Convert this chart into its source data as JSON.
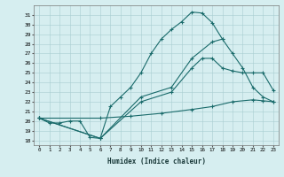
{
  "xlabel": "Humidex (Indice chaleur)",
  "bg_color": "#d6eef0",
  "grid_color": "#a8cdd0",
  "line_color": "#1a6b6b",
  "xlim": [
    -0.5,
    23.5
  ],
  "ylim": [
    17.5,
    32.0
  ],
  "xticks": [
    0,
    1,
    2,
    3,
    4,
    5,
    6,
    7,
    8,
    9,
    10,
    11,
    12,
    13,
    14,
    15,
    16,
    17,
    18,
    19,
    20,
    21,
    22,
    23
  ],
  "yticks": [
    18,
    19,
    20,
    21,
    22,
    23,
    24,
    25,
    26,
    27,
    28,
    29,
    30,
    31
  ],
  "curve1_x": [
    0,
    1,
    2,
    3,
    4,
    5,
    6,
    7,
    8,
    9,
    10,
    11,
    12,
    13,
    14,
    15,
    16,
    17,
    18
  ],
  "curve1_y": [
    20.3,
    19.8,
    19.8,
    20.0,
    20.0,
    18.3,
    18.2,
    21.5,
    22.5,
    23.5,
    25.0,
    27.0,
    28.5,
    29.5,
    30.3,
    31.3,
    31.2,
    30.2,
    28.5
  ],
  "curve2_x": [
    0,
    6,
    10,
    13,
    15,
    17,
    18,
    19,
    20,
    21,
    22,
    23
  ],
  "curve2_y": [
    20.3,
    18.2,
    22.5,
    23.5,
    26.5,
    28.2,
    28.5,
    27.0,
    25.5,
    23.5,
    22.5,
    22.0
  ],
  "curve3_x": [
    0,
    6,
    10,
    13,
    15,
    16,
    17,
    18,
    19,
    20,
    21,
    22,
    23
  ],
  "curve3_y": [
    20.3,
    18.2,
    22.0,
    23.0,
    25.5,
    26.5,
    26.5,
    25.5,
    25.2,
    25.0,
    25.0,
    25.0,
    23.2
  ],
  "curve4_x": [
    0,
    6,
    9,
    12,
    15,
    17,
    19,
    21,
    22,
    23
  ],
  "curve4_y": [
    20.3,
    20.3,
    20.5,
    20.8,
    21.2,
    21.5,
    22.0,
    22.2,
    22.1,
    22.0
  ]
}
